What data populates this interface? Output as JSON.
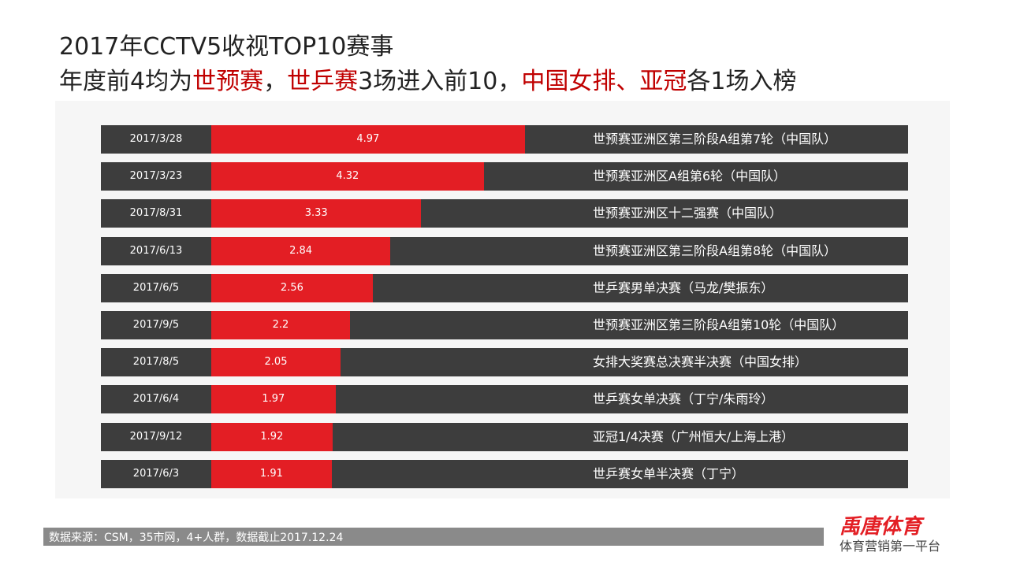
{
  "chart_data": {
    "type": "bar",
    "title": "2017年CCTV5收视TOP10赛事",
    "subtitle": [
      {
        "text": "年度前4均为"
      },
      {
        "text": "世预赛",
        "color": "#c00000"
      },
      {
        "text": "，"
      },
      {
        "text": "世乒赛",
        "color": "#c00000"
      },
      {
        "text": "3场进入前10，"
      },
      {
        "text": "中国女排、亚冠",
        "color": "#c00000"
      },
      {
        "text": "各1场入榜"
      }
    ],
    "categories": [
      "2017/3/28",
      "2017/3/23",
      "2017/8/31",
      "2017/6/13",
      "2017/6/5",
      "2017/9/5",
      "2017/8/5",
      "2017/6/4",
      "2017/9/12",
      "2017/6/3"
    ],
    "events": [
      "世预赛亚洲区第三阶段A组第7轮（中国队）",
      "世预赛亚洲区A组第6轮（中国队）",
      "世预赛亚洲区十二强赛（中国队）",
      "世预赛亚洲区第三阶段A组第8轮（中国队）",
      "世乒赛男单决赛（马龙/樊振东）",
      "世预赛亚洲区第三阶段A组第10轮（中国队）",
      "女排大奖赛总决赛半决赛（中国女排）",
      "世乒赛女单决赛（丁宁/朱雨玲）",
      "亚冠1/4决赛（广州恒大/上海上港）",
      "世乒赛女单半决赛（丁宁）"
    ],
    "values": [
      4.97,
      4.32,
      3.33,
      2.84,
      2.56,
      2.2,
      2.05,
      1.97,
      1.92,
      1.91
    ],
    "color": "#e31e24",
    "track_color": "#3d3d3d"
  },
  "footer": {
    "source": "数据来源：CSM，35市网，4+人群，数据截止2017.12.24",
    "logo": "禹唐体育",
    "slogan": "体育营销第一平台"
  }
}
